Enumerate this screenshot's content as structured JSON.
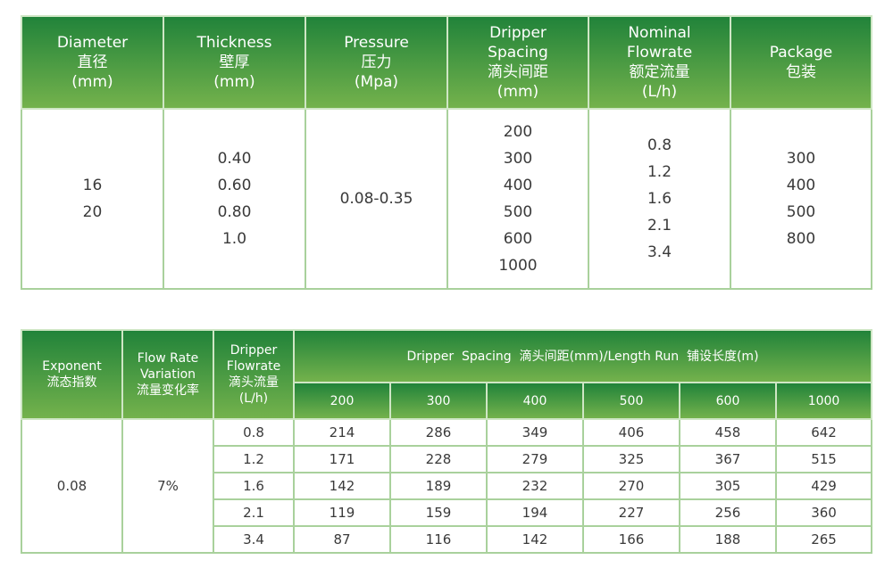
{
  "table1": {
    "headers": [
      [
        "Diameter",
        "直径",
        "(mm)"
      ],
      [
        "Thickness",
        "壁厚",
        "(mm)"
      ],
      [
        "Pressure",
        "压力",
        "(Mpa)"
      ],
      [
        "Dripper",
        "Spacing",
        "滴头间距",
        "(mm)"
      ],
      [
        "Nominal",
        "Flowrate",
        "额定流量",
        "(L/h)"
      ],
      [
        "Package",
        "包装"
      ]
    ],
    "cells": [
      [
        "16",
        "20"
      ],
      [
        "0.40",
        "0.60",
        "0.80",
        "1.0"
      ],
      [
        "0.08-0.35"
      ],
      [
        "200",
        "300",
        "400",
        "500",
        "600",
        "1000"
      ],
      [
        "0.8",
        "1.2",
        "1.6",
        "2.1",
        "3.4"
      ],
      [
        "300",
        "400",
        "500",
        "800"
      ]
    ]
  },
  "table2": {
    "h_exponent": [
      "Exponent",
      "流态指数"
    ],
    "h_variation": [
      "Flow Rate",
      "Variation",
      "流量变化率"
    ],
    "h_flowrate": [
      "Dripper",
      "Flowrate",
      "滴头流量",
      "(L/h)"
    ],
    "h_spacing": "Dripper  Spacing  滴头间距(mm)/Length Run  铺设长度(m)",
    "spacings": [
      "200",
      "300",
      "400",
      "500",
      "600",
      "1000"
    ],
    "exponent": "0.08",
    "variation": "7%",
    "rows": [
      {
        "flow": "0.8",
        "values": [
          "214",
          "286",
          "349",
          "406",
          "458",
          "642"
        ]
      },
      {
        "flow": "1.2",
        "values": [
          "171",
          "228",
          "279",
          "325",
          "367",
          "515"
        ]
      },
      {
        "flow": "1.6",
        "values": [
          "142",
          "189",
          "232",
          "270",
          "305",
          "429"
        ]
      },
      {
        "flow": "2.1",
        "values": [
          "119",
          "159",
          "194",
          "227",
          "256",
          "360"
        ]
      },
      {
        "flow": "3.4",
        "values": [
          "87",
          "116",
          "142",
          "166",
          "188",
          "265"
        ]
      }
    ]
  },
  "colors": {
    "header_top": "#21833a",
    "header_bottom": "#74b24c",
    "border": "#a9d19c"
  }
}
